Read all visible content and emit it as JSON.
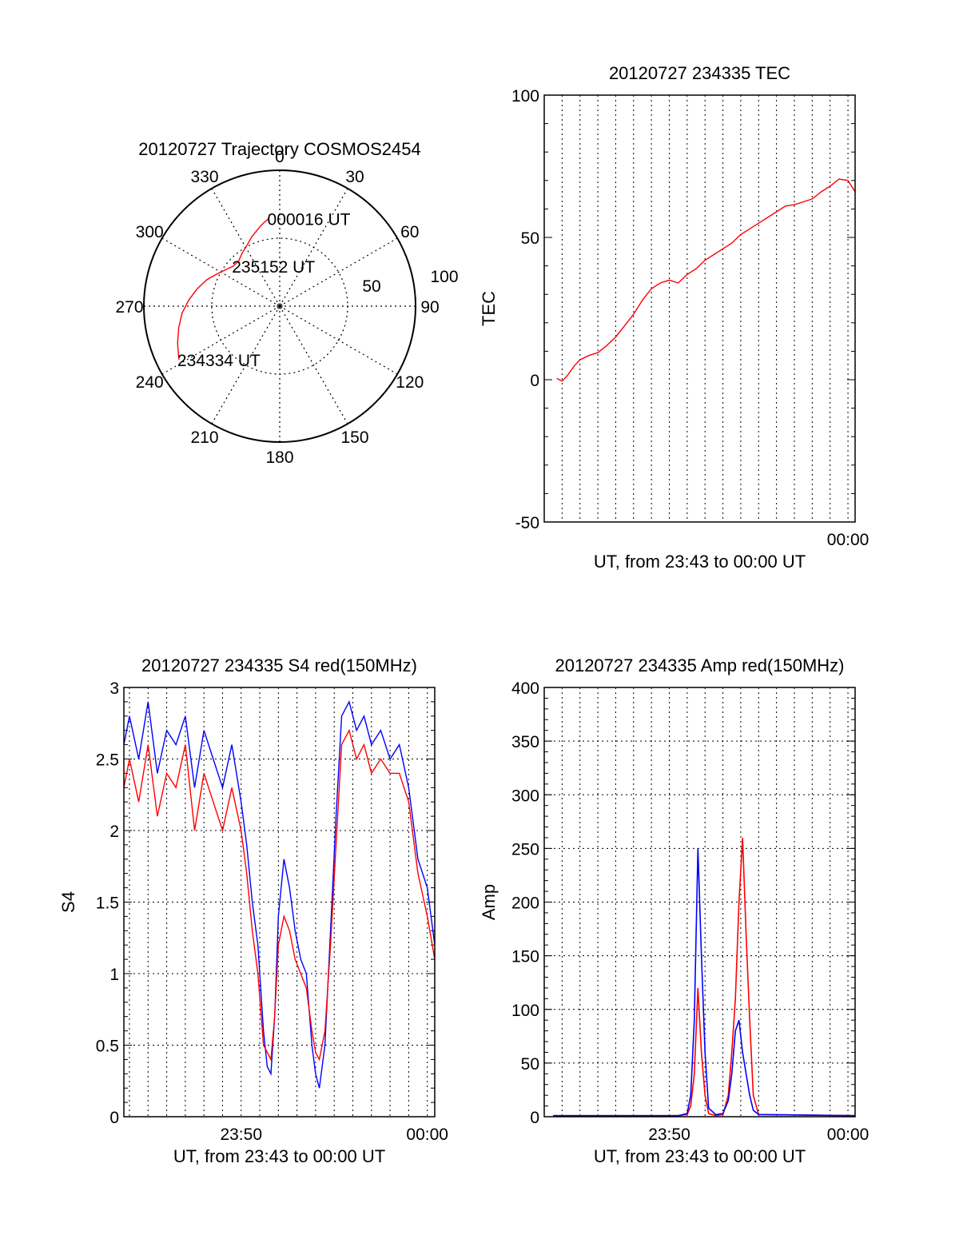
{
  "chart_data": [
    {
      "type": "polar",
      "title": "20120727 Trajectory COSMOS2454",
      "azimuth_labels": [
        "0",
        "30",
        "60",
        "90",
        "120",
        "150",
        "180",
        "210",
        "240",
        "270",
        "300",
        "330"
      ],
      "radial_labels": [
        "50",
        "100"
      ],
      "rlim": [
        0,
        100
      ],
      "grid": true,
      "series": [
        {
          "color": "#ff0000",
          "points": [
            [
              242,
              84
            ],
            [
              250,
              80
            ],
            [
              258,
              76
            ],
            [
              266,
              72
            ],
            [
              274,
              67
            ],
            [
              282,
              62
            ],
            [
              290,
              57
            ],
            [
              297,
              52
            ],
            [
              304,
              48
            ],
            [
              311,
              45
            ],
            [
              318,
              45
            ],
            [
              325,
              48
            ],
            [
              332,
              51
            ],
            [
              338,
              55
            ],
            [
              343,
              58
            ],
            [
              347,
              61
            ],
            [
              350,
              63
            ],
            [
              353,
              65
            ]
          ]
        }
      ],
      "annotations": [
        {
          "text": "234334 UT",
          "az": 242,
          "r": 84
        },
        {
          "text": "235152 UT",
          "az": 311,
          "r": 45
        },
        {
          "text": "000016 UT",
          "az": 353,
          "r": 65
        }
      ]
    },
    {
      "type": "line",
      "title": "20120727 234335 TEC",
      "ylabel": "TEC",
      "xlabel": "UT, from 23:43 to 00:00 UT",
      "ylim": [
        -50,
        100
      ],
      "yticks": [
        "-50",
        "0",
        "50",
        "100"
      ],
      "xlim": [
        0,
        17.4
      ],
      "xtick_labels": [
        {
          "x": 17.0,
          "label": "00:00"
        }
      ],
      "grid": true,
      "series": [
        {
          "color": "#ff0000",
          "x": [
            0.7,
            1.0,
            1.3,
            1.7,
            2.0,
            2.5,
            3.0,
            3.5,
            4.0,
            4.5,
            5.0,
            5.5,
            6.0,
            6.5,
            7.0,
            7.5,
            8.0,
            8.5,
            9.0,
            9.5,
            10.0,
            10.5,
            11.0,
            11.5,
            12.0,
            12.5,
            13.0,
            13.5,
            14.0,
            14.5,
            15.0,
            15.5,
            16.0,
            16.5,
            17.0,
            17.4
          ],
          "y": [
            0.5,
            -0.5,
            1.5,
            5,
            7,
            8.5,
            9.5,
            12,
            15,
            19,
            23,
            28,
            32,
            34,
            35,
            34,
            37,
            39,
            42,
            44,
            46,
            48,
            51,
            53,
            55,
            57,
            59,
            61,
            61.5,
            62.5,
            63.5,
            66,
            68,
            70.5,
            70,
            66
          ]
        }
      ]
    },
    {
      "type": "line",
      "title": "20120727 234335 S4 red(150MHz)",
      "ylabel": "S4",
      "xlabel": "UT, from 23:43 to 00:00 UT",
      "ylim": [
        0,
        3
      ],
      "yticks": [
        "0",
        "0.5",
        "1",
        "1.5",
        "2",
        "2.5",
        "3"
      ],
      "xlim": [
        0.7,
        17.4
      ],
      "xtick_labels": [
        {
          "x": 7.0,
          "label": "23:50"
        },
        {
          "x": 17.0,
          "label": "00:00"
        }
      ],
      "grid": true,
      "series": [
        {
          "color": "#0000ff",
          "x": [
            0.7,
            1.0,
            1.5,
            2.0,
            2.5,
            3.0,
            3.5,
            4.0,
            4.5,
            5.0,
            5.5,
            6.0,
            6.5,
            7.0,
            7.3,
            7.6,
            7.9,
            8.2,
            8.4,
            8.6,
            8.8,
            9.0,
            9.3,
            9.6,
            9.9,
            10.2,
            10.5,
            10.8,
            11.0,
            11.2,
            11.5,
            11.8,
            12.1,
            12.4,
            12.8,
            13.2,
            13.6,
            14.0,
            14.5,
            15.0,
            15.5,
            16.0,
            16.5,
            17.0,
            17.4
          ],
          "y": [
            2.6,
            2.8,
            2.5,
            2.9,
            2.4,
            2.7,
            2.6,
            2.8,
            2.3,
            2.7,
            2.5,
            2.3,
            2.6,
            2.2,
            1.9,
            1.5,
            1.2,
            0.6,
            0.35,
            0.3,
            0.7,
            1.4,
            1.8,
            1.6,
            1.3,
            1.1,
            1.0,
            0.5,
            0.3,
            0.2,
            0.5,
            1.3,
            2.1,
            2.8,
            2.9,
            2.7,
            2.8,
            2.6,
            2.7,
            2.5,
            2.6,
            2.3,
            1.8,
            1.6,
            1.2
          ]
        },
        {
          "color": "#ff0000",
          "x": [
            0.7,
            1.0,
            1.5,
            2.0,
            2.5,
            3.0,
            3.5,
            4.0,
            4.5,
            5.0,
            5.5,
            6.0,
            6.5,
            7.0,
            7.3,
            7.6,
            7.9,
            8.2,
            8.4,
            8.6,
            8.8,
            9.0,
            9.3,
            9.6,
            9.9,
            10.2,
            10.5,
            10.8,
            11.0,
            11.2,
            11.5,
            11.8,
            12.1,
            12.4,
            12.8,
            13.2,
            13.6,
            14.0,
            14.5,
            15.0,
            15.5,
            16.0,
            16.5,
            17.0,
            17.4
          ],
          "y": [
            2.3,
            2.5,
            2.2,
            2.6,
            2.1,
            2.4,
            2.3,
            2.6,
            2.0,
            2.4,
            2.2,
            2.0,
            2.3,
            2.0,
            1.7,
            1.3,
            1.0,
            0.5,
            0.45,
            0.4,
            0.7,
            1.2,
            1.4,
            1.3,
            1.1,
            1.0,
            0.9,
            0.6,
            0.45,
            0.4,
            0.6,
            1.2,
            1.9,
            2.6,
            2.7,
            2.5,
            2.6,
            2.4,
            2.5,
            2.4,
            2.4,
            2.2,
            1.7,
            1.4,
            1.1
          ]
        }
      ]
    },
    {
      "type": "line",
      "title": "20120727 234335 Amp red(150MHz)",
      "ylabel": "Amp",
      "xlabel": "UT, from 23:43 to 00:00 UT",
      "ylim": [
        0,
        400
      ],
      "yticks": [
        "0",
        "50",
        "100",
        "150",
        "200",
        "250",
        "300",
        "350",
        "400"
      ],
      "xlim": [
        0,
        17.4
      ],
      "xtick_labels": [
        {
          "x": 7.0,
          "label": "23:50"
        },
        {
          "x": 17.0,
          "label": "00:00"
        }
      ],
      "grid": true,
      "series": [
        {
          "color": "#ff0000",
          "x": [
            0.5,
            7.5,
            8.0,
            8.2,
            8.4,
            8.6,
            8.8,
            9.0,
            9.2,
            9.6,
            10.0,
            10.3,
            10.5,
            10.7,
            10.9,
            11.1,
            11.3,
            11.5,
            11.7,
            12.0,
            17.4
          ],
          "y": [
            1,
            1,
            2,
            10,
            40,
            120,
            60,
            20,
            3,
            1,
            2,
            20,
            60,
            110,
            200,
            260,
            170,
            90,
            20,
            2,
            1
          ]
        },
        {
          "color": "#0000ff",
          "x": [
            0.5,
            7.5,
            8.0,
            8.2,
            8.4,
            8.6,
            8.8,
            9.0,
            9.2,
            9.6,
            10.0,
            10.3,
            10.5,
            10.7,
            10.9,
            11.1,
            11.3,
            11.5,
            11.7,
            12.0,
            17.4
          ],
          "y": [
            1,
            1,
            3,
            20,
            90,
            250,
            150,
            60,
            8,
            2,
            3,
            15,
            40,
            80,
            90,
            60,
            40,
            20,
            6,
            2,
            1
          ]
        }
      ]
    }
  ]
}
